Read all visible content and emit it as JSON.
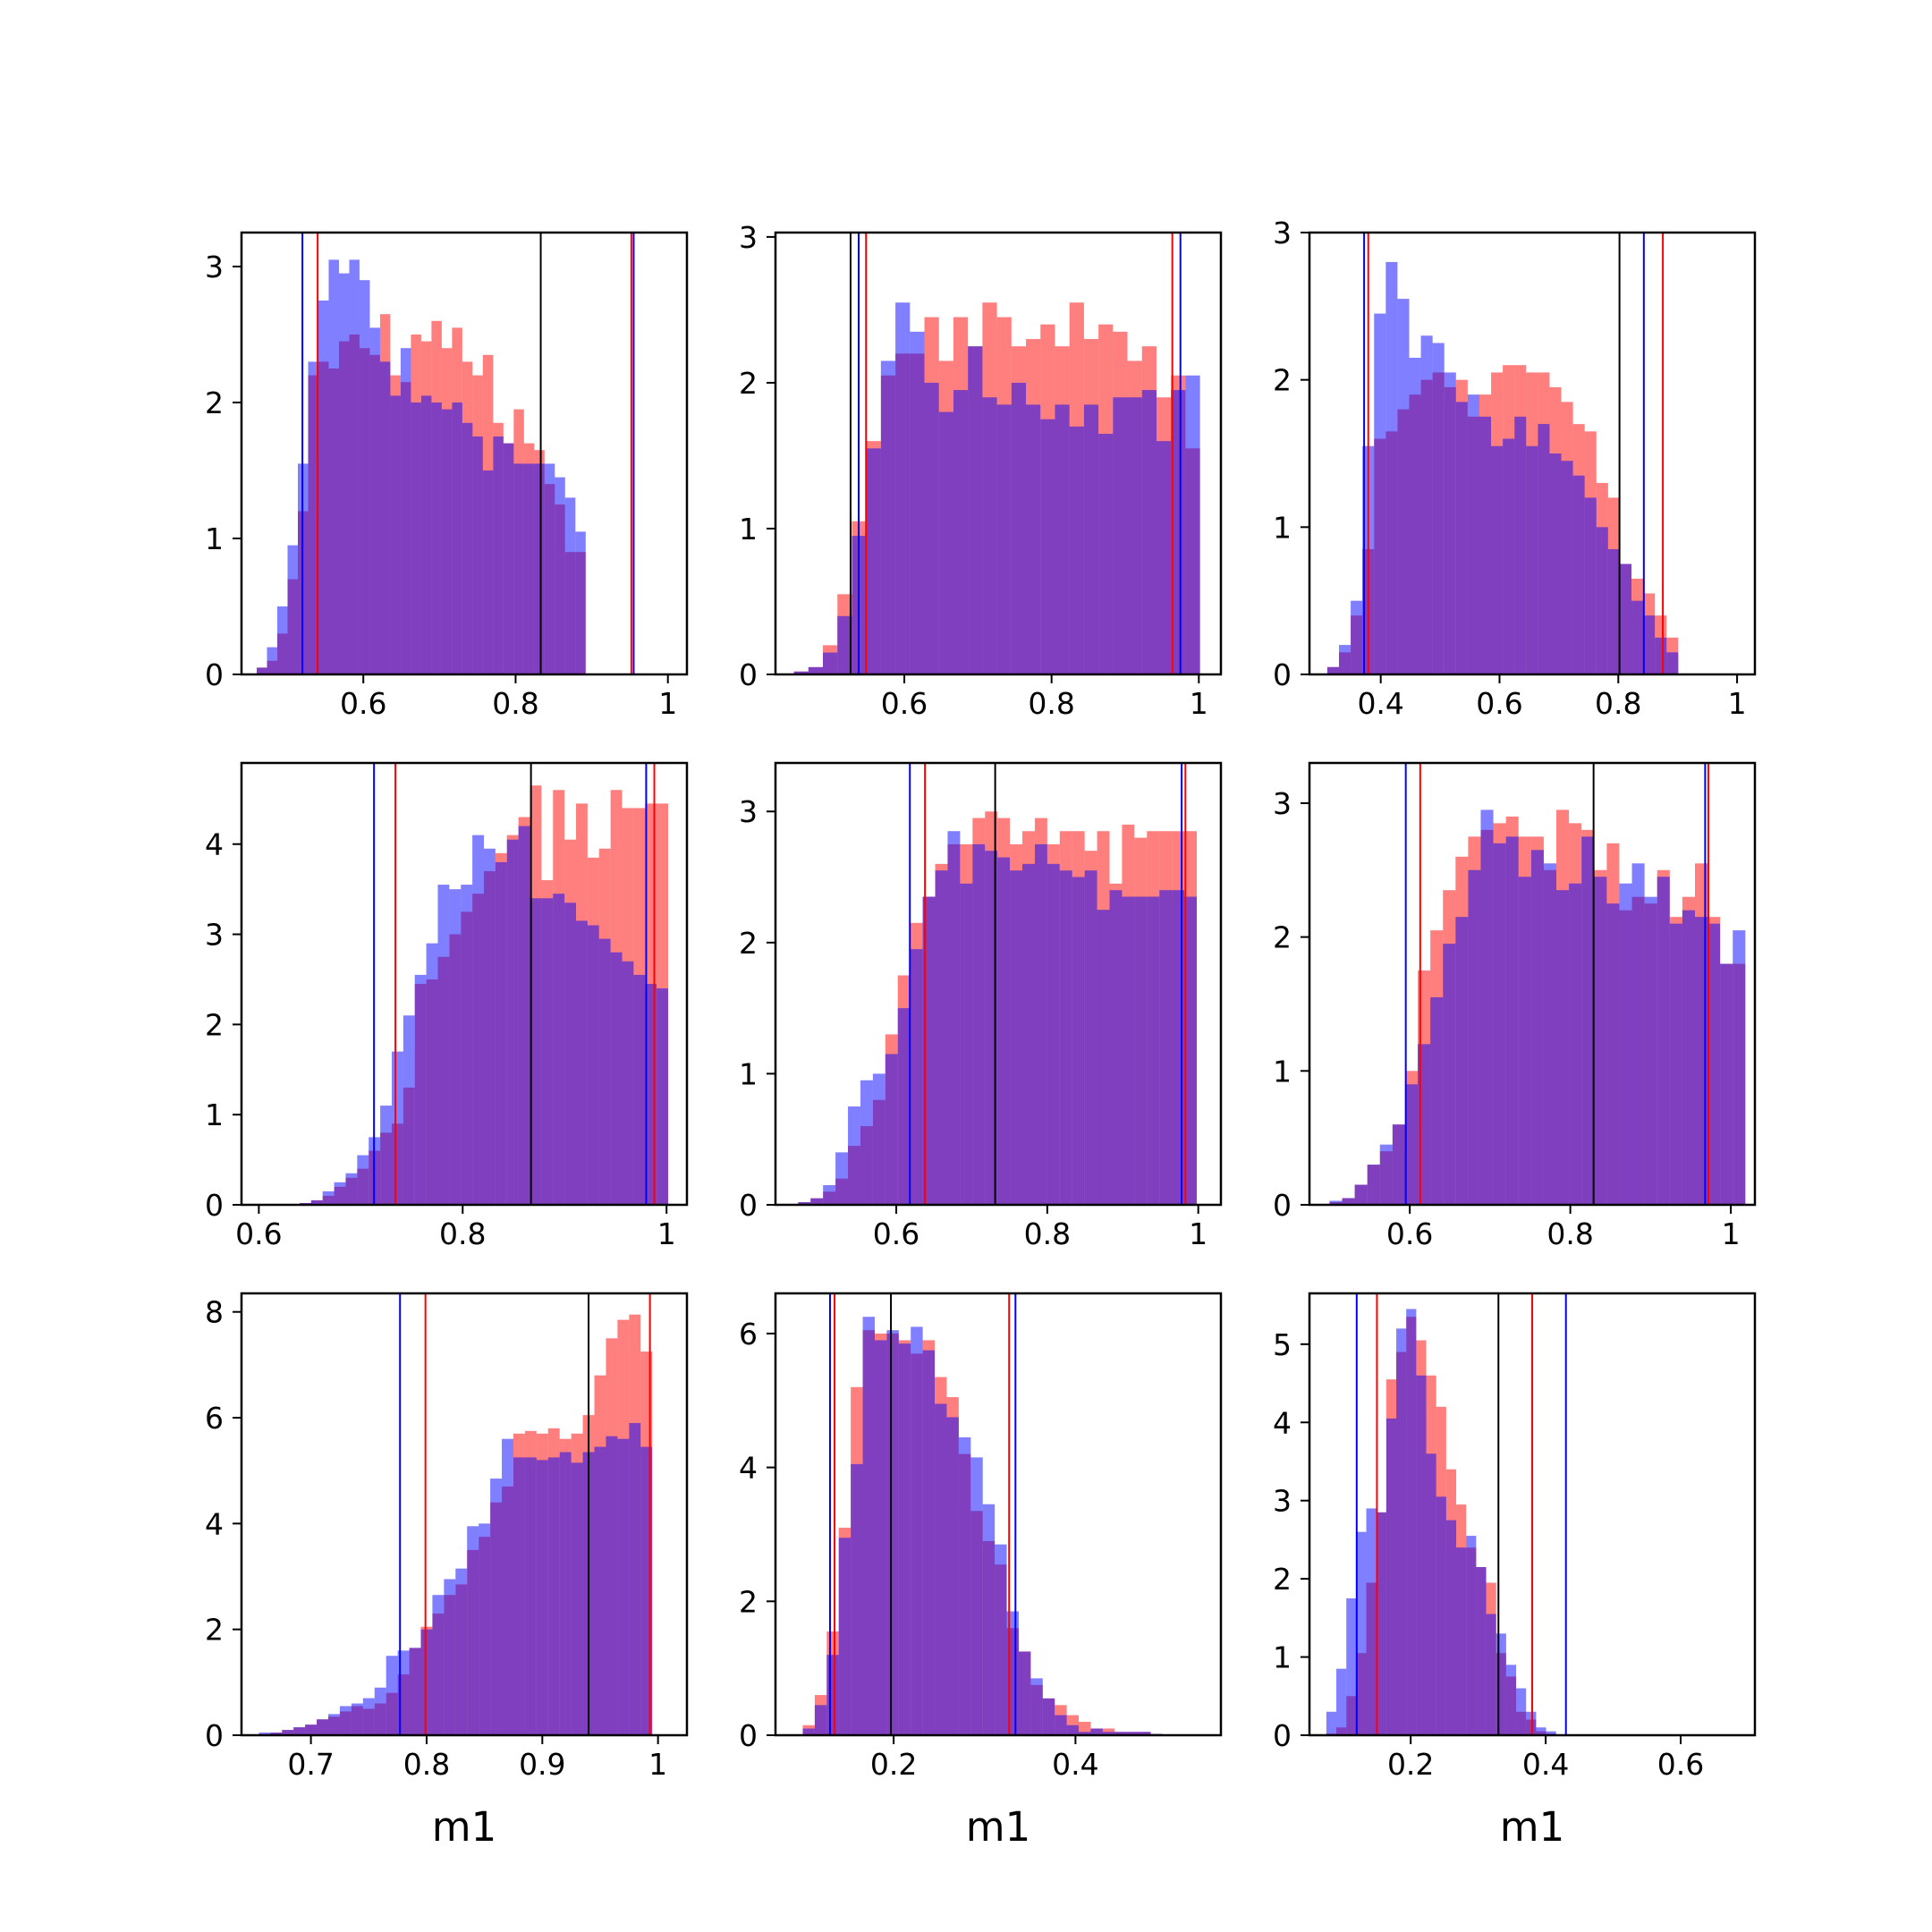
{
  "chart_data": [
    {
      "type": "histogram",
      "row": 0,
      "col": 0,
      "xlim": [
        0.44,
        1.025
      ],
      "ylim": [
        0,
        3.25
      ],
      "xticks": [
        0.6,
        0.8,
        1.0
      ],
      "yticks": [
        0,
        1,
        2,
        3
      ],
      "xlabel": "",
      "bin_start": 0.46,
      "bin_width": 0.0135,
      "series": [
        {
          "color": "#ff0000",
          "values": [
            0.05,
            0.1,
            0.3,
            0.7,
            1.2,
            2.2,
            2.3,
            2.25,
            2.45,
            2.5,
            2.4,
            2.35,
            2.65,
            2.2,
            2.15,
            2.5,
            2.45,
            2.6,
            2.4,
            2.55,
            2.3,
            2.2,
            2.35,
            1.85,
            1.7,
            1.95,
            1.7,
            1.65,
            1.4,
            1.25,
            0.9,
            0.9
          ]
        },
        {
          "color": "#0000ff",
          "values": [
            0.05,
            0.2,
            0.5,
            0.95,
            1.55,
            2.3,
            2.75,
            3.05,
            2.95,
            3.05,
            2.9,
            2.55,
            2.3,
            2.05,
            2.4,
            2.0,
            2.05,
            2.0,
            1.95,
            2.0,
            1.85,
            1.75,
            1.5,
            1.75,
            1.7,
            1.55,
            1.55,
            1.55,
            1.55,
            1.45,
            1.3,
            1.05
          ]
        }
      ],
      "vlines": [
        {
          "color": "#0000ff",
          "x": 0.52
        },
        {
          "color": "#ff0000",
          "x": 0.54
        },
        {
          "color": "#000000",
          "x": 0.833
        },
        {
          "color": "#ff0000",
          "x": 0.952
        },
        {
          "color": "#0000ff",
          "x": 0.955
        }
      ]
    },
    {
      "type": "histogram",
      "row": 0,
      "col": 1,
      "xlim": [
        0.425,
        1.03
      ],
      "ylim": [
        0,
        3.03
      ],
      "xticks": [
        0.6,
        0.8,
        1.0
      ],
      "yticks": [
        0,
        1,
        2,
        3
      ],
      "xlabel": "",
      "bin_start": 0.45,
      "bin_width": 0.0197,
      "series": [
        {
          "color": "#ff0000",
          "values": [
            0.02,
            0.05,
            0.2,
            0.55,
            1.05,
            1.6,
            2.05,
            2.2,
            2.2,
            2.45,
            2.15,
            2.45,
            2.25,
            2.55,
            2.45,
            2.25,
            2.3,
            2.4,
            2.25,
            2.55,
            2.3,
            2.4,
            2.35,
            2.15,
            2.25,
            1.9,
            2.05,
            1.55
          ]
        },
        {
          "color": "#0000ff",
          "values": [
            0.02,
            0.05,
            0.15,
            0.4,
            0.95,
            1.55,
            2.15,
            2.55,
            2.35,
            2.0,
            1.8,
            1.95,
            2.25,
            1.9,
            1.85,
            2.0,
            1.85,
            1.75,
            1.85,
            1.7,
            1.85,
            1.65,
            1.9,
            1.9,
            1.95,
            1.6,
            1.95,
            2.05
          ]
        }
      ],
      "vlines": [
        {
          "color": "#000000",
          "x": 0.527
        },
        {
          "color": "#0000ff",
          "x": 0.538
        },
        {
          "color": "#ff0000",
          "x": 0.548
        },
        {
          "color": "#ff0000",
          "x": 0.964
        },
        {
          "color": "#0000ff",
          "x": 0.975
        }
      ]
    },
    {
      "type": "histogram",
      "row": 0,
      "col": 2,
      "xlim": [
        0.28,
        1.03
      ],
      "ylim": [
        0,
        3.0
      ],
      "xticks": [
        0.4,
        0.6,
        0.8,
        1.0
      ],
      "yticks": [
        0,
        1,
        2,
        3
      ],
      "xlabel": "",
      "bin_start": 0.31,
      "bin_width": 0.0197,
      "series": [
        {
          "color": "#ff0000",
          "values": [
            0.05,
            0.15,
            0.4,
            0.85,
            1.6,
            1.65,
            1.8,
            1.9,
            2.0,
            2.05,
            1.95,
            2.0,
            1.75,
            1.9,
            2.05,
            2.1,
            2.1,
            2.05,
            2.05,
            1.95,
            1.85,
            1.7,
            1.65,
            1.3,
            1.2,
            0.75,
            0.65,
            0.55,
            0.4,
            0.25
          ]
        },
        {
          "color": "#0000ff",
          "values": [
            0.05,
            0.2,
            0.5,
            1.55,
            2.45,
            2.8,
            2.55,
            2.15,
            2.3,
            2.25,
            2.05,
            1.85,
            1.9,
            1.75,
            1.55,
            1.6,
            1.75,
            1.55,
            1.7,
            1.5,
            1.45,
            1.35,
            1.2,
            1.0,
            0.85,
            0.75,
            0.5,
            0.4,
            0.25,
            0.15
          ]
        }
      ],
      "vlines": [
        {
          "color": "#0000ff",
          "x": 0.372
        },
        {
          "color": "#ff0000",
          "x": 0.379
        },
        {
          "color": "#000000",
          "x": 0.802
        },
        {
          "color": "#0000ff",
          "x": 0.843
        },
        {
          "color": "#ff0000",
          "x": 0.875
        }
      ]
    },
    {
      "type": "histogram",
      "row": 1,
      "col": 0,
      "xlim": [
        0.583,
        1.02
      ],
      "ylim": [
        0,
        4.9
      ],
      "xticks": [
        0.6,
        0.8,
        1.0
      ],
      "yticks": [
        0,
        1,
        2,
        3,
        4
      ],
      "xlabel": "",
      "bin_start": 0.64,
      "bin_width": 0.0113,
      "series": [
        {
          "color": "#ff0000",
          "values": [
            0.02,
            0.05,
            0.1,
            0.2,
            0.3,
            0.4,
            0.6,
            0.8,
            0.9,
            1.3,
            2.45,
            2.5,
            2.75,
            3.0,
            3.25,
            3.45,
            3.7,
            3.9,
            4.1,
            4.3,
            4.65,
            3.6,
            4.6,
            4.05,
            4.45,
            3.85,
            3.95,
            4.6,
            4.4,
            4.4,
            4.45,
            4.45
          ]
        },
        {
          "color": "#0000ff",
          "values": [
            0.02,
            0.05,
            0.15,
            0.25,
            0.35,
            0.55,
            0.75,
            1.1,
            1.7,
            2.1,
            2.55,
            2.9,
            3.55,
            3.5,
            3.55,
            4.1,
            3.95,
            3.8,
            4.05,
            4.2,
            3.4,
            3.4,
            3.45,
            3.35,
            3.15,
            3.1,
            2.95,
            2.8,
            2.7,
            2.55,
            2.45,
            2.4
          ]
        }
      ],
      "vlines": [
        {
          "color": "#0000ff",
          "x": 0.713
        },
        {
          "color": "#ff0000",
          "x": 0.734
        },
        {
          "color": "#000000",
          "x": 0.867
        },
        {
          "color": "#0000ff",
          "x": 0.98
        },
        {
          "color": "#ff0000",
          "x": 0.988
        }
      ]
    },
    {
      "type": "histogram",
      "row": 1,
      "col": 1,
      "xlim": [
        0.44,
        1.03
      ],
      "ylim": [
        0,
        3.37
      ],
      "xticks": [
        0.6,
        0.8,
        1.0
      ],
      "yticks": [
        0,
        1,
        2,
        3
      ],
      "xlabel": "",
      "bin_start": 0.47,
      "bin_width": 0.0165,
      "series": [
        {
          "color": "#ff0000",
          "values": [
            0.02,
            0.05,
            0.1,
            0.2,
            0.45,
            0.6,
            0.8,
            1.3,
            1.75,
            2.15,
            2.35,
            2.6,
            2.75,
            2.75,
            2.95,
            3.0,
            2.95,
            2.75,
            2.85,
            2.95,
            2.75,
            2.85,
            2.85,
            2.7,
            2.85,
            2.45,
            2.9,
            2.8,
            2.85,
            2.85,
            2.85,
            2.85
          ]
        },
        {
          "color": "#0000ff",
          "values": [
            0.02,
            0.05,
            0.15,
            0.4,
            0.75,
            0.95,
            1.0,
            1.15,
            1.5,
            1.95,
            2.35,
            2.55,
            2.85,
            2.45,
            2.75,
            2.7,
            2.65,
            2.55,
            2.6,
            2.75,
            2.6,
            2.55,
            2.5,
            2.55,
            2.25,
            2.4,
            2.35,
            2.35,
            2.35,
            2.4,
            2.4,
            2.35
          ]
        }
      ],
      "vlines": [
        {
          "color": "#0000ff",
          "x": 0.618
        },
        {
          "color": "#ff0000",
          "x": 0.638
        },
        {
          "color": "#000000",
          "x": 0.731
        },
        {
          "color": "#0000ff",
          "x": 0.978
        },
        {
          "color": "#ff0000",
          "x": 0.983
        }
      ]
    },
    {
      "type": "histogram",
      "row": 1,
      "col": 2,
      "xlim": [
        0.475,
        1.03
      ],
      "ylim": [
        0,
        3.3
      ],
      "xticks": [
        0.6,
        0.8,
        1.0
      ],
      "yticks": [
        0,
        1,
        2,
        3
      ],
      "xlabel": "",
      "bin_start": 0.5,
      "bin_width": 0.0157,
      "series": [
        {
          "color": "#ff0000",
          "values": [
            0.02,
            0.05,
            0.15,
            0.3,
            0.4,
            0.6,
            1.0,
            1.75,
            2.05,
            2.35,
            2.6,
            2.75,
            2.8,
            2.85,
            2.9,
            2.75,
            2.75,
            2.5,
            2.95,
            2.85,
            2.8,
            2.5,
            2.7,
            2.2,
            2.3,
            2.25,
            2.5,
            2.15,
            2.3,
            2.55,
            2.15,
            1.8,
            1.8
          ]
        },
        {
          "color": "#0000ff",
          "values": [
            0.03,
            0.05,
            0.15,
            0.3,
            0.45,
            0.6,
            0.9,
            1.2,
            1.55,
            1.95,
            2.15,
            2.5,
            2.95,
            2.7,
            2.75,
            2.45,
            2.65,
            2.55,
            2.35,
            2.4,
            2.75,
            2.45,
            2.25,
            2.4,
            2.55,
            2.3,
            2.45,
            2.1,
            2.2,
            2.15,
            2.1,
            1.8,
            2.05
          ]
        }
      ],
      "vlines": [
        {
          "color": "#0000ff",
          "x": 0.595
        },
        {
          "color": "#ff0000",
          "x": 0.613
        },
        {
          "color": "#000000",
          "x": 0.829
        },
        {
          "color": "#0000ff",
          "x": 0.968
        },
        {
          "color": "#ff0000",
          "x": 0.972
        }
      ]
    },
    {
      "type": "histogram",
      "row": 2,
      "col": 0,
      "xlim": [
        0.64,
        1.025
      ],
      "ylim": [
        0,
        8.35
      ],
      "xticks": [
        0.7,
        0.8,
        0.9,
        1.0
      ],
      "yticks": [
        0,
        2,
        4,
        6,
        8
      ],
      "xlabel": "m1",
      "bin_start": 0.655,
      "bin_width": 0.01,
      "series": [
        {
          "color": "#ff0000",
          "values": [
            0.02,
            0.05,
            0.1,
            0.15,
            0.2,
            0.3,
            0.35,
            0.45,
            0.55,
            0.5,
            0.6,
            0.8,
            1.15,
            1.65,
            2.05,
            2.3,
            2.65,
            2.85,
            3.5,
            3.75,
            4.4,
            4.7,
            5.7,
            5.75,
            5.7,
            5.8,
            5.6,
            5.7,
            6.05,
            6.8,
            7.5,
            7.85,
            7.95,
            7.25
          ]
        },
        {
          "color": "#0000ff",
          "values": [
            0.05,
            0.05,
            0.1,
            0.15,
            0.2,
            0.3,
            0.4,
            0.55,
            0.6,
            0.7,
            0.9,
            1.5,
            1.6,
            1.65,
            2.0,
            2.65,
            2.95,
            3.15,
            3.95,
            4.0,
            4.85,
            5.6,
            5.25,
            5.25,
            5.2,
            5.25,
            5.35,
            5.15,
            5.35,
            5.45,
            5.65,
            5.6,
            5.9,
            5.45
          ]
        }
      ],
      "vlines": [
        {
          "color": "#0000ff",
          "x": 0.777
        },
        {
          "color": "#ff0000",
          "x": 0.799
        },
        {
          "color": "#000000",
          "x": 0.94
        },
        {
          "color": "#ff0000",
          "x": 0.993
        }
      ]
    },
    {
      "type": "histogram",
      "row": 2,
      "col": 1,
      "xlim": [
        0.07,
        0.56
      ],
      "ylim": [
        0,
        6.6
      ],
      "xticks": [
        0.2,
        0.4
      ],
      "yticks": [
        0,
        2,
        4,
        6
      ],
      "xlabel": "m1",
      "bin_start": 0.1,
      "bin_width": 0.0132,
      "series": [
        {
          "color": "#ff0000",
          "values": [
            0.15,
            0.6,
            1.55,
            3.1,
            5.2,
            6.05,
            6.0,
            6.0,
            5.9,
            5.7,
            5.9,
            5.35,
            5.05,
            4.2,
            3.35,
            2.9,
            2.55,
            1.6,
            1.25,
            0.75,
            0.55,
            0.45,
            0.3,
            0.2,
            0.1,
            0.1,
            0.05,
            0.05,
            0.05,
            0.02
          ]
        },
        {
          "color": "#0000ff",
          "values": [
            0.1,
            0.45,
            1.2,
            2.95,
            4.05,
            6.25,
            5.9,
            6.05,
            5.85,
            6.1,
            5.75,
            4.95,
            4.75,
            4.45,
            4.15,
            3.45,
            2.85,
            1.85,
            1.25,
            0.85,
            0.55,
            0.3,
            0.15,
            0.05,
            0.1,
            0.05,
            0.05,
            0.05,
            0.05,
            0.02
          ]
        }
      ],
      "vlines": [
        {
          "color": "#0000ff",
          "x": 0.13
        },
        {
          "color": "#ff0000",
          "x": 0.135
        },
        {
          "color": "#000000",
          "x": 0.197
        },
        {
          "color": "#ff0000",
          "x": 0.327
        },
        {
          "color": "#0000ff",
          "x": 0.334
        }
      ]
    },
    {
      "type": "histogram",
      "row": 2,
      "col": 2,
      "xlim": [
        0.05,
        0.71
      ],
      "ylim": [
        0,
        5.65
      ],
      "xticks": [
        0.2,
        0.4,
        0.6
      ],
      "yticks": [
        0,
        1,
        2,
        3,
        4,
        5
      ],
      "xlabel": "m1",
      "bin_start": 0.075,
      "bin_width": 0.0148,
      "series": [
        {
          "color": "#ff0000",
          "values": [
            0.02,
            0.1,
            0.5,
            1.05,
            1.95,
            2.85,
            4.55,
            4.9,
            5.35,
            5.05,
            4.6,
            4.2,
            3.4,
            2.95,
            2.4,
            2.15,
            1.95,
            1.05,
            0.75,
            0.3,
            0.2,
            0.05,
            0.02
          ]
        },
        {
          "color": "#0000ff",
          "values": [
            0.3,
            0.85,
            1.75,
            2.6,
            2.9,
            2.85,
            4.05,
            5.2,
            5.45,
            4.6,
            3.6,
            3.05,
            2.75,
            2.4,
            2.55,
            2.15,
            1.55,
            1.3,
            0.9,
            0.6,
            0.3,
            0.1,
            0.05
          ]
        }
      ],
      "vlines": [
        {
          "color": "#0000ff",
          "x": 0.12
        },
        {
          "color": "#ff0000",
          "x": 0.15
        },
        {
          "color": "#000000",
          "x": 0.33
        },
        {
          "color": "#ff0000",
          "x": 0.38
        },
        {
          "color": "#0000ff",
          "x": 0.43
        }
      ]
    }
  ]
}
